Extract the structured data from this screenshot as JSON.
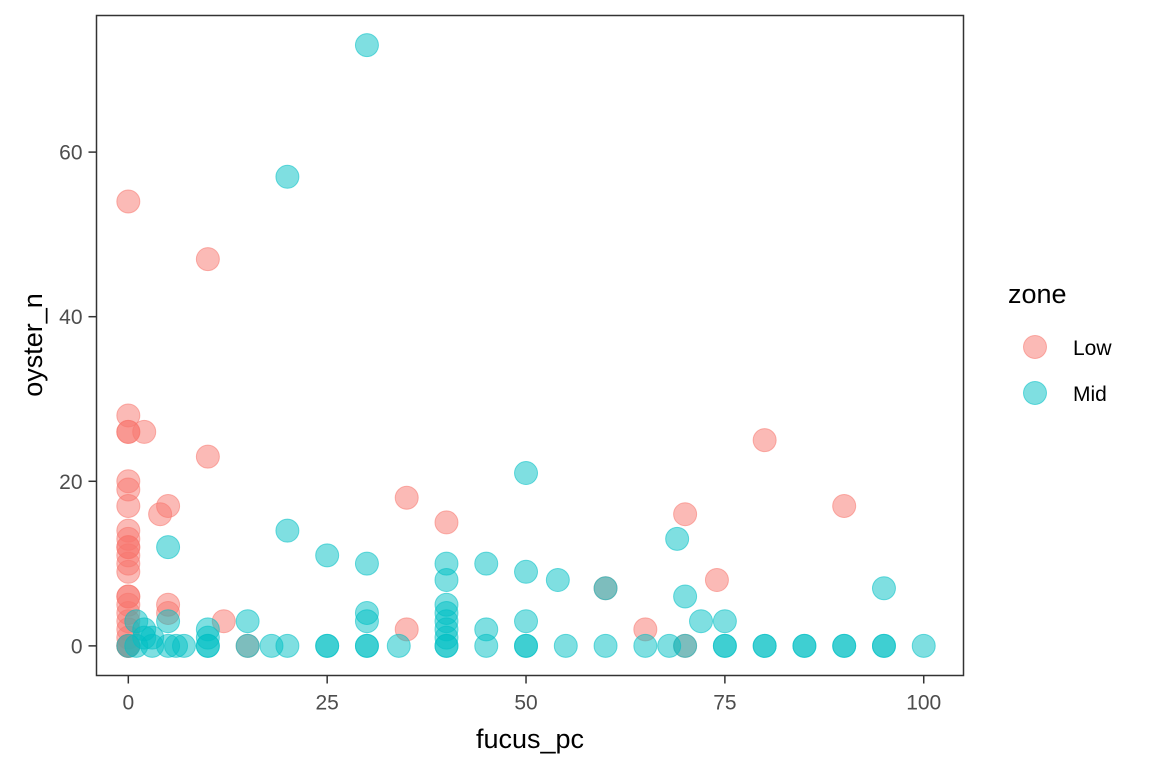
{
  "chart_data": {
    "type": "scatter",
    "title": "",
    "xlabel": "fucus_pc",
    "ylabel": "oyster_n",
    "xlim": [
      -4,
      105
    ],
    "ylim": [
      -3.6,
      76.6
    ],
    "xticks": [
      0,
      25,
      50,
      75,
      100
    ],
    "xtick_labels": [
      "0",
      "25",
      "50",
      "75",
      "100"
    ],
    "yticks": [
      0,
      20,
      40,
      60
    ],
    "ytick_labels": [
      "0",
      "20",
      "40",
      "60"
    ],
    "grid": false,
    "point_opacity": 0.5,
    "legend": {
      "title": "zone",
      "position": "right"
    },
    "series": [
      {
        "name": "Low",
        "color": "#F8766D",
        "points": [
          [
            0,
            54
          ],
          [
            0,
            28
          ],
          [
            0,
            26
          ],
          [
            0,
            26
          ],
          [
            0,
            20
          ],
          [
            0,
            19
          ],
          [
            0,
            17
          ],
          [
            0,
            14
          ],
          [
            0,
            13
          ],
          [
            0,
            12
          ],
          [
            0,
            12
          ],
          [
            0,
            11
          ],
          [
            0,
            10
          ],
          [
            0,
            9
          ],
          [
            0,
            6
          ],
          [
            0,
            6
          ],
          [
            0,
            5
          ],
          [
            0,
            4
          ],
          [
            0,
            3
          ],
          [
            0,
            2
          ],
          [
            0,
            1
          ],
          [
            0,
            0
          ],
          [
            0,
            0
          ],
          [
            0,
            0
          ],
          [
            2,
            26
          ],
          [
            4,
            16
          ],
          [
            5,
            17
          ],
          [
            5,
            5
          ],
          [
            5,
            4
          ],
          [
            10,
            47
          ],
          [
            10,
            23
          ],
          [
            12,
            3
          ],
          [
            15,
            0
          ],
          [
            35,
            18
          ],
          [
            35,
            2
          ],
          [
            40,
            15
          ],
          [
            60,
            7
          ],
          [
            65,
            2
          ],
          [
            70,
            16
          ],
          [
            70,
            0
          ],
          [
            74,
            8
          ],
          [
            80,
            25
          ],
          [
            90,
            17
          ]
        ]
      },
      {
        "name": "Mid",
        "color": "#00BFC4",
        "points": [
          [
            30,
            73
          ],
          [
            20,
            57
          ],
          [
            50,
            21
          ],
          [
            20,
            14
          ],
          [
            69,
            13
          ],
          [
            5,
            12
          ],
          [
            25,
            11
          ],
          [
            30,
            10
          ],
          [
            40,
            10
          ],
          [
            45,
            10
          ],
          [
            50,
            9
          ],
          [
            40,
            8
          ],
          [
            54,
            8
          ],
          [
            60,
            7
          ],
          [
            95,
            7
          ],
          [
            70,
            6
          ],
          [
            40,
            5
          ],
          [
            30,
            4
          ],
          [
            40,
            4
          ],
          [
            1,
            3
          ],
          [
            5,
            3
          ],
          [
            15,
            3
          ],
          [
            30,
            3
          ],
          [
            40,
            3
          ],
          [
            50,
            3
          ],
          [
            72,
            3
          ],
          [
            75,
            3
          ],
          [
            2,
            2
          ],
          [
            10,
            2
          ],
          [
            40,
            2
          ],
          [
            45,
            2
          ],
          [
            2,
            1
          ],
          [
            3,
            1
          ],
          [
            10,
            1
          ],
          [
            40,
            1
          ],
          [
            0,
            0
          ],
          [
            1,
            0
          ],
          [
            3,
            0
          ],
          [
            5,
            0
          ],
          [
            6,
            0
          ],
          [
            7,
            0
          ],
          [
            10,
            0
          ],
          [
            10,
            0
          ],
          [
            15,
            0
          ],
          [
            18,
            0
          ],
          [
            20,
            0
          ],
          [
            25,
            0
          ],
          [
            25,
            0
          ],
          [
            30,
            0
          ],
          [
            30,
            0
          ],
          [
            34,
            0
          ],
          [
            40,
            0
          ],
          [
            40,
            0
          ],
          [
            45,
            0
          ],
          [
            50,
            0
          ],
          [
            50,
            0
          ],
          [
            55,
            0
          ],
          [
            60,
            0
          ],
          [
            65,
            0
          ],
          [
            68,
            0
          ],
          [
            70,
            0
          ],
          [
            75,
            0
          ],
          [
            75,
            0
          ],
          [
            80,
            0
          ],
          [
            80,
            0
          ],
          [
            85,
            0
          ],
          [
            85,
            0
          ],
          [
            90,
            0
          ],
          [
            90,
            0
          ],
          [
            95,
            0
          ],
          [
            95,
            0
          ],
          [
            100,
            0
          ]
        ]
      }
    ]
  }
}
